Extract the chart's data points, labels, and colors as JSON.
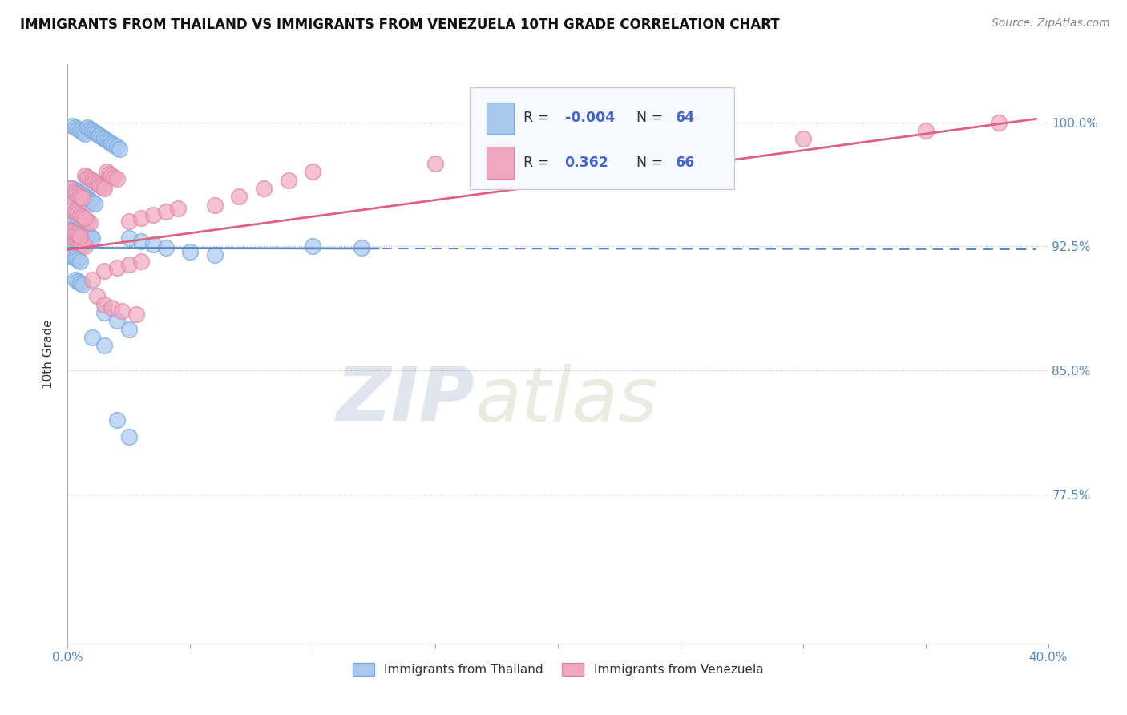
{
  "title": "IMMIGRANTS FROM THAILAND VS IMMIGRANTS FROM VENEZUELA 10TH GRADE CORRELATION CHART",
  "source": "Source: ZipAtlas.com",
  "ylabel": "10th Grade",
  "y_tick_labels": [
    "77.5%",
    "85.0%",
    "92.5%",
    "100.0%"
  ],
  "y_tick_values": [
    0.775,
    0.85,
    0.925,
    1.0
  ],
  "xlim": [
    0.0,
    0.4
  ],
  "ylim": [
    0.685,
    1.035
  ],
  "color_thailand": "#a8c8f0",
  "color_venezuela": "#f0a8c0",
  "color_line_thailand": "#5588cc",
  "color_line_venezuela": "#e06080",
  "background_color": "#ffffff",
  "title_fontsize": 12,
  "source_fontsize": 10,
  "thailand_x": [
    0.002,
    0.003,
    0.004,
    0.005,
    0.006,
    0.007,
    0.008,
    0.009,
    0.01,
    0.011,
    0.012,
    0.013,
    0.014,
    0.015,
    0.016,
    0.017,
    0.018,
    0.019,
    0.02,
    0.021,
    0.002,
    0.003,
    0.004,
    0.005,
    0.006,
    0.007,
    0.008,
    0.009,
    0.01,
    0.011,
    0.001,
    0.002,
    0.003,
    0.004,
    0.005,
    0.006,
    0.007,
    0.008,
    0.009,
    0.01,
    0.001,
    0.002,
    0.003,
    0.004,
    0.005,
    0.003,
    0.004,
    0.005,
    0.006,
    0.025,
    0.03,
    0.035,
    0.04,
    0.05,
    0.06,
    0.015,
    0.02,
    0.025,
    0.01,
    0.015,
    0.02,
    0.025,
    0.1,
    0.12
  ],
  "thailand_y": [
    0.998,
    0.997,
    0.996,
    0.995,
    0.994,
    0.993,
    0.997,
    0.996,
    0.995,
    0.994,
    0.993,
    0.992,
    0.991,
    0.99,
    0.989,
    0.988,
    0.987,
    0.986,
    0.985,
    0.984,
    0.96,
    0.959,
    0.958,
    0.957,
    0.956,
    0.955,
    0.954,
    0.953,
    0.952,
    0.951,
    0.94,
    0.938,
    0.937,
    0.936,
    0.935,
    0.934,
    0.933,
    0.932,
    0.931,
    0.93,
    0.92,
    0.919,
    0.918,
    0.917,
    0.916,
    0.905,
    0.904,
    0.903,
    0.902,
    0.93,
    0.928,
    0.926,
    0.924,
    0.922,
    0.92,
    0.885,
    0.88,
    0.875,
    0.87,
    0.865,
    0.82,
    0.81,
    0.925,
    0.924
  ],
  "venezuela_x": [
    0.001,
    0.002,
    0.003,
    0.004,
    0.005,
    0.006,
    0.007,
    0.008,
    0.009,
    0.01,
    0.011,
    0.012,
    0.013,
    0.014,
    0.015,
    0.016,
    0.017,
    0.018,
    0.019,
    0.02,
    0.002,
    0.003,
    0.004,
    0.005,
    0.006,
    0.007,
    0.008,
    0.009,
    0.001,
    0.002,
    0.003,
    0.004,
    0.005,
    0.006,
    0.007,
    0.001,
    0.002,
    0.003,
    0.004,
    0.005,
    0.025,
    0.03,
    0.035,
    0.04,
    0.045,
    0.06,
    0.07,
    0.08,
    0.09,
    0.1,
    0.15,
    0.2,
    0.25,
    0.3,
    0.35,
    0.38,
    0.015,
    0.02,
    0.025,
    0.03,
    0.01,
    0.012,
    0.015,
    0.018,
    0.022,
    0.028
  ],
  "venezuela_y": [
    0.96,
    0.958,
    0.957,
    0.956,
    0.955,
    0.954,
    0.968,
    0.967,
    0.966,
    0.965,
    0.964,
    0.963,
    0.962,
    0.961,
    0.96,
    0.97,
    0.969,
    0.968,
    0.967,
    0.966,
    0.93,
    0.929,
    0.928,
    0.927,
    0.926,
    0.925,
    0.94,
    0.939,
    0.948,
    0.947,
    0.946,
    0.945,
    0.944,
    0.943,
    0.942,
    0.935,
    0.934,
    0.933,
    0.932,
    0.931,
    0.94,
    0.942,
    0.944,
    0.946,
    0.948,
    0.95,
    0.955,
    0.96,
    0.965,
    0.97,
    0.975,
    0.98,
    0.985,
    0.99,
    0.995,
    1.0,
    0.91,
    0.912,
    0.914,
    0.916,
    0.905,
    0.895,
    0.89,
    0.888,
    0.886,
    0.884
  ],
  "watermark_zip": "ZIP",
  "watermark_atlas": "atlas",
  "legend_line1_r": "-0.004",
  "legend_line1_n": "64",
  "legend_line2_r": "0.362",
  "legend_line2_n": "66"
}
